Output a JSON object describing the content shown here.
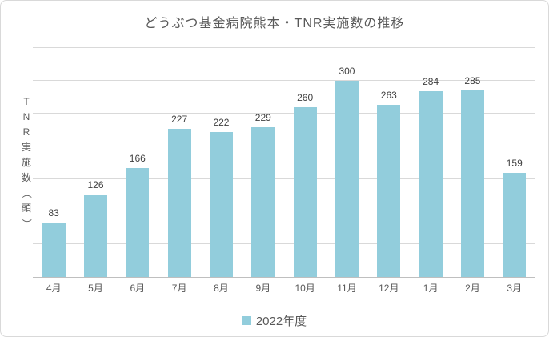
{
  "chart_data": {
    "type": "bar",
    "title": "どうぶつ基金病院熊本・TNR実施数の推移",
    "categories": [
      "4月",
      "5月",
      "6月",
      "7月",
      "8月",
      "9月",
      "10月",
      "11月",
      "12月",
      "1月",
      "2月",
      "3月"
    ],
    "series": [
      {
        "name": "2022年度",
        "values": [
          83,
          126,
          166,
          227,
          222,
          229,
          260,
          300,
          263,
          284,
          285,
          159
        ]
      }
    ],
    "xlabel": "",
    "ylabel": "TNR実施数（頭）",
    "ylim": [
      0,
      350
    ],
    "grid_step": 50,
    "grid": true,
    "y_tick_labels_visible": false,
    "data_labels": true,
    "legend_position": "bottom"
  },
  "colors": {
    "bar_fill": "#92CDDC",
    "gridline": "#D9D9D9",
    "axis_line": "#BFBFBF",
    "title_text": "#595959",
    "label_text": "#404040",
    "axis_text": "#595959",
    "frame_border": "#D9D9D9",
    "background": "#FFFFFF"
  }
}
